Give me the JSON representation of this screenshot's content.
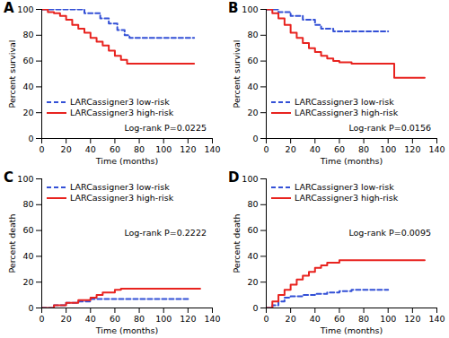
{
  "chart_data": [
    {
      "type": "line",
      "title": "A",
      "x_label": "Time (months)",
      "y_label": "Percent survival",
      "xlim": [
        0,
        140
      ],
      "xticks": [
        0,
        20,
        40,
        60,
        80,
        100,
        120,
        140
      ],
      "ylim": [
        0,
        100
      ],
      "yticks": [
        0,
        20,
        40,
        60,
        80,
        100
      ],
      "grid": false,
      "legend": "bottom-left",
      "annotation": "Log-rank P=0.0225",
      "series": [
        {
          "name": "LARCassigner3 low-risk",
          "color": "#3350d6",
          "line_style": "dashed",
          "x": [
            0,
            35,
            48,
            55,
            62,
            68,
            72,
            125
          ],
          "values": [
            100,
            97,
            93,
            89,
            84,
            80,
            78,
            78
          ]
        },
        {
          "name": "LARCassigner3 high-risk",
          "color": "#e8231f",
          "line_style": "solid",
          "x": [
            0,
            5,
            10,
            15,
            20,
            25,
            30,
            35,
            40,
            45,
            50,
            55,
            60,
            65,
            70,
            125
          ],
          "values": [
            100,
            98,
            97,
            95,
            92,
            88,
            85,
            82,
            78,
            75,
            72,
            68,
            64,
            61,
            58,
            58
          ]
        }
      ]
    },
    {
      "type": "line",
      "title": "B",
      "x_label": "Time (months)",
      "y_label": "Percent survival",
      "xlim": [
        0,
        140
      ],
      "xticks": [
        0,
        20,
        40,
        60,
        80,
        100,
        120,
        140
      ],
      "ylim": [
        0,
        100
      ],
      "yticks": [
        0,
        20,
        40,
        60,
        80,
        100
      ],
      "grid": false,
      "legend": "bottom-left",
      "annotation": "Log-rank P=0.0156",
      "series": [
        {
          "name": "LARCassigner3 low-risk",
          "color": "#3350d6",
          "line_style": "dashed",
          "x": [
            0,
            10,
            20,
            30,
            40,
            45,
            55,
            100
          ],
          "values": [
            100,
            98,
            95,
            92,
            88,
            85,
            83,
            83
          ]
        },
        {
          "name": "LARCassigner3 high-risk",
          "color": "#e8231f",
          "line_style": "solid",
          "x": [
            0,
            5,
            10,
            15,
            20,
            25,
            30,
            35,
            40,
            45,
            50,
            55,
            60,
            70,
            105,
            130
          ],
          "values": [
            100,
            97,
            93,
            88,
            82,
            78,
            74,
            70,
            67,
            64,
            62,
            60,
            59,
            58,
            47,
            47
          ]
        }
      ]
    },
    {
      "type": "line",
      "title": "C",
      "x_label": "Time (months)",
      "y_label": "Percent death",
      "xlim": [
        0,
        140
      ],
      "xticks": [
        0,
        20,
        40,
        60,
        80,
        100,
        120,
        140
      ],
      "ylim": [
        0,
        100
      ],
      "yticks": [
        0,
        20,
        40,
        60,
        80,
        100
      ],
      "grid": false,
      "legend": "top-left",
      "annotation": "Log-rank P=0.2222",
      "series": [
        {
          "name": "LARCassigner3 low-risk",
          "color": "#3350d6",
          "line_style": "dashed",
          "x": [
            0,
            10,
            20,
            30,
            40,
            120
          ],
          "values": [
            0,
            2,
            4,
            5,
            7,
            7
          ]
        },
        {
          "name": "LARCassigner3 high-risk",
          "color": "#e8231f",
          "line_style": "solid",
          "x": [
            0,
            10,
            20,
            30,
            40,
            45,
            50,
            60,
            65,
            130
          ],
          "values": [
            0,
            2,
            4,
            6,
            8,
            10,
            12,
            14,
            15,
            15
          ]
        }
      ]
    },
    {
      "type": "line",
      "title": "D",
      "x_label": "Time (months)",
      "y_label": "Percent death",
      "xlim": [
        0,
        140
      ],
      "xticks": [
        0,
        20,
        40,
        60,
        80,
        100,
        120,
        140
      ],
      "ylim": [
        0,
        100
      ],
      "yticks": [
        0,
        20,
        40,
        60,
        80,
        100
      ],
      "grid": false,
      "legend": "top-left",
      "annotation": "Log-rank P=0.0095",
      "series": [
        {
          "name": "LARCassigner3 low-risk",
          "color": "#3350d6",
          "line_style": "dashed",
          "x": [
            0,
            5,
            10,
            15,
            20,
            30,
            40,
            50,
            60,
            70,
            100
          ],
          "values": [
            0,
            2,
            5,
            8,
            9,
            10,
            11,
            12,
            13,
            14,
            14
          ]
        },
        {
          "name": "LARCassigner3 high-risk",
          "color": "#e8231f",
          "line_style": "solid",
          "x": [
            0,
            5,
            10,
            15,
            20,
            25,
            30,
            35,
            40,
            45,
            50,
            60,
            130
          ],
          "values": [
            0,
            5,
            10,
            14,
            18,
            22,
            25,
            28,
            31,
            33,
            35,
            37,
            37
          ]
        }
      ]
    }
  ]
}
